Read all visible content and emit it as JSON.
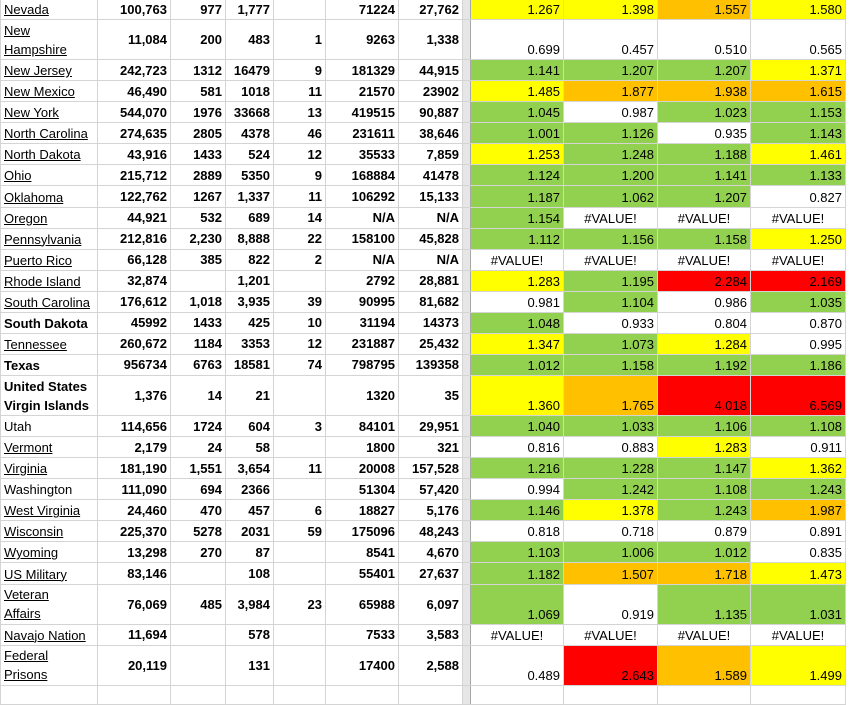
{
  "colors": {
    "G": "#92d050",
    "Y": "#ffff00",
    "O": "#ffc000",
    "R": "#ff0000"
  },
  "rows": [
    {
      "name": "Nevada",
      "link": true,
      "values": [
        "100,763",
        "977",
        "1,777",
        null,
        "71224",
        "27,762"
      ],
      "ratios": [
        "1.267",
        "1.398",
        "1.557",
        "1.580"
      ],
      "fills": [
        "Y",
        "Y",
        "O",
        "Y"
      ]
    },
    {
      "name": "New Hampshire",
      "link": true,
      "wrap": true,
      "values": [
        "11,084",
        "200",
        "483",
        "1",
        "9263",
        "1,338"
      ],
      "ratios": [
        "0.699",
        "0.457",
        "0.510",
        "0.565"
      ],
      "fills": [
        null,
        null,
        null,
        null
      ]
    },
    {
      "name": "New Jersey",
      "link": true,
      "values": [
        "242,723",
        "1312",
        "16479",
        "9",
        "181329",
        "44,915"
      ],
      "ratios": [
        "1.141",
        "1.207",
        "1.207",
        "1.371"
      ],
      "fills": [
        "G",
        "G",
        "G",
        "Y"
      ]
    },
    {
      "name": "New Mexico",
      "link": true,
      "values": [
        "46,490",
        "581",
        "1018",
        "11",
        "21570",
        "23902"
      ],
      "ratios": [
        "1.485",
        "1.877",
        "1.938",
        "1.615"
      ],
      "fills": [
        "Y",
        "O",
        "O",
        "O"
      ]
    },
    {
      "name": "New York",
      "link": true,
      "values": [
        "544,070",
        "1976",
        "33668",
        "13",
        "419515",
        "90,887"
      ],
      "ratios": [
        "1.045",
        "0.987",
        "1.023",
        "1.153"
      ],
      "fills": [
        "G",
        null,
        "G",
        "G"
      ]
    },
    {
      "name": "North Carolina",
      "link": true,
      "values": [
        "274,635",
        "2805",
        "4378",
        "46",
        "231611",
        "38,646"
      ],
      "ratios": [
        "1.001",
        "1.126",
        "0.935",
        "1.143"
      ],
      "fills": [
        "G",
        "G",
        null,
        "G"
      ]
    },
    {
      "name": "North Dakota",
      "link": true,
      "values": [
        "43,916",
        "1433",
        "524",
        "12",
        "35533",
        "7,859"
      ],
      "ratios": [
        "1.253",
        "1.248",
        "1.188",
        "1.461"
      ],
      "fills": [
        "Y",
        "G",
        "G",
        "Y"
      ]
    },
    {
      "name": "Ohio",
      "link": true,
      "values": [
        "215,712",
        "2889",
        "5350",
        "9",
        "168884",
        "41478"
      ],
      "ratios": [
        "1.124",
        "1.200",
        "1.141",
        "1.133"
      ],
      "fills": [
        "G",
        "G",
        "G",
        "G"
      ]
    },
    {
      "name": "Oklahoma",
      "link": true,
      "values": [
        "122,762",
        "1267",
        "1,337",
        "11",
        "106292",
        "15,133"
      ],
      "ratios": [
        "1.187",
        "1.062",
        "1.207",
        "0.827"
      ],
      "fills": [
        "G",
        "G",
        "G",
        null
      ]
    },
    {
      "name": "Oregon",
      "link": true,
      "values": [
        "44,921",
        "532",
        "689",
        "14",
        "N/A",
        "N/A"
      ],
      "ratios": [
        "1.154",
        "#VALUE!",
        "#VALUE!",
        "#VALUE!"
      ],
      "fills": [
        "G",
        null,
        null,
        null
      ]
    },
    {
      "name": "Pennsylvania",
      "link": true,
      "values": [
        "212,816",
        "2,230",
        "8,888",
        "22",
        "158100",
        "45,828"
      ],
      "ratios": [
        "1.112",
        "1.156",
        "1.158",
        "1.250"
      ],
      "fills": [
        "G",
        "G",
        "G",
        "Y"
      ]
    },
    {
      "name": "Puerto Rico",
      "link": true,
      "values": [
        "66,128",
        "385",
        "822",
        "2",
        "N/A",
        "N/A"
      ],
      "ratios": [
        "#VALUE!",
        "#VALUE!",
        "#VALUE!",
        "#VALUE!"
      ],
      "fills": [
        null,
        null,
        null,
        null
      ]
    },
    {
      "name": "Rhode Island",
      "link": true,
      "values": [
        "32,874",
        null,
        "1,201",
        null,
        "2792",
        "28,881"
      ],
      "ratios": [
        "1.283",
        "1.195",
        "2.284",
        "2.169"
      ],
      "fills": [
        "Y",
        "G",
        "R",
        "R"
      ]
    },
    {
      "name": "South Carolina",
      "link": true,
      "values": [
        "176,612",
        "1,018",
        "3,935",
        "39",
        "90995",
        "81,682"
      ],
      "ratios": [
        "0.981",
        "1.104",
        "0.986",
        "1.035"
      ],
      "fills": [
        null,
        "G",
        null,
        "G"
      ]
    },
    {
      "name": "South Dakota",
      "bold": true,
      "values": [
        "45992",
        "1433",
        "425",
        "10",
        "31194",
        "14373"
      ],
      "ratios": [
        "1.048",
        "0.933",
        "0.804",
        "0.870"
      ],
      "fills": [
        "G",
        null,
        null,
        null
      ]
    },
    {
      "name": "Tennessee",
      "link": true,
      "values": [
        "260,672",
        "1184",
        "3353",
        "12",
        "231887",
        "25,432"
      ],
      "ratios": [
        "1.347",
        "1.073",
        "1.284",
        "0.995"
      ],
      "fills": [
        "Y",
        "G",
        "Y",
        null
      ]
    },
    {
      "name": "Texas",
      "bold": true,
      "values": [
        "956734",
        "6763",
        "18581",
        "74",
        "798795",
        "139358"
      ],
      "ratios": [
        "1.012",
        "1.158",
        "1.192",
        "1.186"
      ],
      "fills": [
        "G",
        "G",
        "G",
        "G"
      ]
    },
    {
      "name": "United States Virgin Islands",
      "bold": true,
      "wrap": true,
      "values": [
        "1,376",
        "14",
        "21",
        null,
        "1320",
        "35"
      ],
      "ratios": [
        "1.360",
        "1.765",
        "4.018",
        "6.569"
      ],
      "fills": [
        "Y",
        "O",
        "R",
        "R"
      ]
    },
    {
      "name": "Utah",
      "values": [
        "114,656",
        "1724",
        "604",
        "3",
        "84101",
        "29,951"
      ],
      "ratios": [
        "1.040",
        "1.033",
        "1.106",
        "1.108"
      ],
      "fills": [
        "G",
        "G",
        "G",
        "G"
      ]
    },
    {
      "name": "Vermont",
      "link": true,
      "values": [
        "2,179",
        "24",
        "58",
        null,
        "1800",
        "321"
      ],
      "ratios": [
        "0.816",
        "0.883",
        "1.283",
        "0.911"
      ],
      "fills": [
        null,
        null,
        "Y",
        null
      ]
    },
    {
      "name": "Virginia",
      "link": true,
      "values": [
        "181,190",
        "1,551",
        "3,654",
        "11",
        "20008",
        "157,528"
      ],
      "ratios": [
        "1.216",
        "1.228",
        "1.147",
        "1.362"
      ],
      "fills": [
        "G",
        "G",
        "G",
        "Y"
      ]
    },
    {
      "name": "Washington",
      "values": [
        "111,090",
        "694",
        "2366",
        null,
        "51304",
        "57,420"
      ],
      "ratios": [
        "0.994",
        "1.242",
        "1.108",
        "1.243"
      ],
      "fills": [
        null,
        "G",
        "G",
        "G"
      ]
    },
    {
      "name": "West Virginia",
      "link": true,
      "values": [
        "24,460",
        "470",
        "457",
        "6",
        "18827",
        "5,176"
      ],
      "ratios": [
        "1.146",
        "1.378",
        "1.243",
        "1.987"
      ],
      "fills": [
        "G",
        "Y",
        "G",
        "O"
      ]
    },
    {
      "name": "Wisconsin",
      "link": true,
      "values": [
        "225,370",
        "5278",
        "2031",
        "59",
        "175096",
        "48,243"
      ],
      "ratios": [
        "0.818",
        "0.718",
        "0.879",
        "0.891"
      ],
      "fills": [
        null,
        null,
        null,
        null
      ]
    },
    {
      "name": "Wyoming",
      "link": true,
      "values": [
        "13,298",
        "270",
        "87",
        null,
        "8541",
        "4,670"
      ],
      "ratios": [
        "1.103",
        "1.006",
        "1.012",
        "0.835"
      ],
      "fills": [
        "G",
        "G",
        "G",
        null
      ]
    },
    {
      "name": "US Military",
      "link": true,
      "values": [
        "83,146",
        null,
        "108",
        null,
        "55401",
        "27,637"
      ],
      "ratios": [
        "1.182",
        "1.507",
        "1.718",
        "1.473"
      ],
      "fills": [
        "G",
        "O",
        "O",
        "Y"
      ]
    },
    {
      "name": "Veteran Affairs",
      "link": true,
      "wrap": true,
      "values": [
        "76,069",
        "485",
        "3,984",
        "23",
        "65988",
        "6,097"
      ],
      "ratios": [
        "1.069",
        "0.919",
        "1.135",
        "1.031"
      ],
      "fills": [
        "G",
        null,
        "G",
        "G"
      ]
    },
    {
      "name": "Navajo Nation",
      "link": true,
      "values": [
        "11,694",
        null,
        "578",
        null,
        "7533",
        "3,583"
      ],
      "ratios": [
        "#VALUE!",
        "#VALUE!",
        "#VALUE!",
        "#VALUE!"
      ],
      "fills": [
        null,
        null,
        null,
        null
      ]
    },
    {
      "name": "Federal Prisons",
      "link": true,
      "wrap": true,
      "values": [
        "20,119",
        null,
        "131",
        null,
        "17400",
        "2,588"
      ],
      "ratios": [
        "0.489",
        "2.643",
        "1.589",
        "1.499"
      ],
      "fills": [
        null,
        "R",
        "O",
        "Y"
      ]
    }
  ]
}
